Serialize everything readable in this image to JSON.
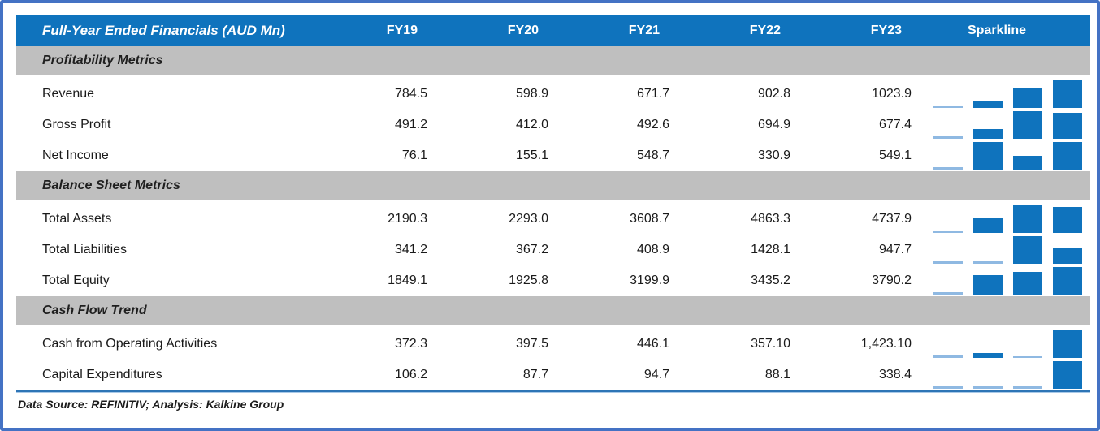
{
  "header": {
    "title": "Full-Year Ended Financials (AUD Mn)",
    "sparkline_label": "Sparkline"
  },
  "columns": [
    "FY19",
    "FY20",
    "FY21",
    "FY22",
    "FY23"
  ],
  "sections": [
    {
      "label": "Profitability Metrics",
      "rows": [
        {
          "label": "Revenue",
          "values": [
            "784.5",
            "598.9",
            "671.7",
            "902.8",
            "1023.9"
          ],
          "spark": [
            598.9,
            671.7,
            902.8,
            1023.9
          ]
        },
        {
          "label": "Gross Profit",
          "values": [
            "491.2",
            "412.0",
            "492.6",
            "694.9",
            "677.4"
          ],
          "spark": [
            412.0,
            492.6,
            694.9,
            677.4
          ]
        },
        {
          "label": "Net Income",
          "values": [
            "76.1",
            "155.1",
            "548.7",
            "330.9",
            "549.1"
          ],
          "spark": [
            155.1,
            548.7,
            330.9,
            549.1
          ]
        }
      ]
    },
    {
      "label": "Balance Sheet Metrics",
      "rows": [
        {
          "label": "Total Assets",
          "values": [
            "2190.3",
            "2293.0",
            "3608.7",
            "4863.3",
            "4737.9"
          ],
          "spark": [
            2293.0,
            3608.7,
            4863.3,
            4737.9
          ]
        },
        {
          "label": "Total Liabilities",
          "values": [
            "341.2",
            "367.2",
            "408.9",
            "1428.1",
            "947.7"
          ],
          "spark": [
            367.2,
            408.9,
            1428.1,
            947.7
          ]
        },
        {
          "label": "Total Equity",
          "values": [
            "1849.1",
            "1925.8",
            "3199.9",
            "3435.2",
            "3790.2"
          ],
          "spark": [
            1925.8,
            3199.9,
            3435.2,
            3790.2
          ]
        }
      ]
    },
    {
      "label": "Cash Flow Trend",
      "rows": [
        {
          "label": "Cash from Operating Activities",
          "values": [
            "372.3",
            "397.5",
            "446.1",
            "357.10",
            "1,423.10"
          ],
          "spark": [
            397.5,
            446.1,
            357.1,
            1423.1
          ]
        },
        {
          "label": "Capital Expenditures",
          "values": [
            "106.2",
            "87.7",
            "94.7",
            "88.1",
            "338.4"
          ],
          "spark": [
            87.7,
            94.7,
            88.1,
            338.4
          ]
        }
      ]
    }
  ],
  "footer": "Data Source: REFINITIV; Analysis: Kalkine Group",
  "colors": {
    "header_bg": "#0f73bd",
    "section_band_bg": "#bfbfbf",
    "sparkline_bar": "#0f73bd",
    "sparkline_bar_low": "#8fb9e2",
    "outer_border": "#4472c4",
    "bottom_rule": "#2e75b6"
  },
  "chart_data": {
    "type": "table",
    "title": "Full-Year Ended Financials (AUD Mn)",
    "columns": [
      "FY19",
      "FY20",
      "FY21",
      "FY22",
      "FY23"
    ],
    "sections": [
      {
        "label": "Profitability Metrics",
        "rows": [
          {
            "metric": "Revenue",
            "values": [
              784.5,
              598.9,
              671.7,
              902.8,
              1023.9
            ]
          },
          {
            "metric": "Gross Profit",
            "values": [
              491.2,
              412.0,
              492.6,
              694.9,
              677.4
            ]
          },
          {
            "metric": "Net Income",
            "values": [
              76.1,
              155.1,
              548.7,
              330.9,
              549.1
            ]
          }
        ]
      },
      {
        "label": "Balance Sheet Metrics",
        "rows": [
          {
            "metric": "Total Assets",
            "values": [
              2190.3,
              2293.0,
              3608.7,
              4863.3,
              4737.9
            ]
          },
          {
            "metric": "Total Liabilities",
            "values": [
              341.2,
              367.2,
              408.9,
              1428.1,
              947.7
            ]
          },
          {
            "metric": "Total Equity",
            "values": [
              1849.1,
              1925.8,
              3199.9,
              3435.2,
              3790.2
            ]
          }
        ]
      },
      {
        "label": "Cash Flow Trend",
        "rows": [
          {
            "metric": "Cash from Operating Activities",
            "values": [
              372.3,
              397.5,
              446.1,
              357.1,
              1423.1
            ]
          },
          {
            "metric": "Capital Expenditures",
            "values": [
              106.2,
              87.7,
              94.7,
              88.1,
              338.4
            ]
          }
        ]
      }
    ],
    "sparkline": {
      "type": "bar",
      "points_per_row": 4,
      "covers": [
        "FY20",
        "FY21",
        "FY22",
        "FY23"
      ],
      "scaling": "min-to-max per row, minimum shown as light-blue sliver"
    }
  }
}
